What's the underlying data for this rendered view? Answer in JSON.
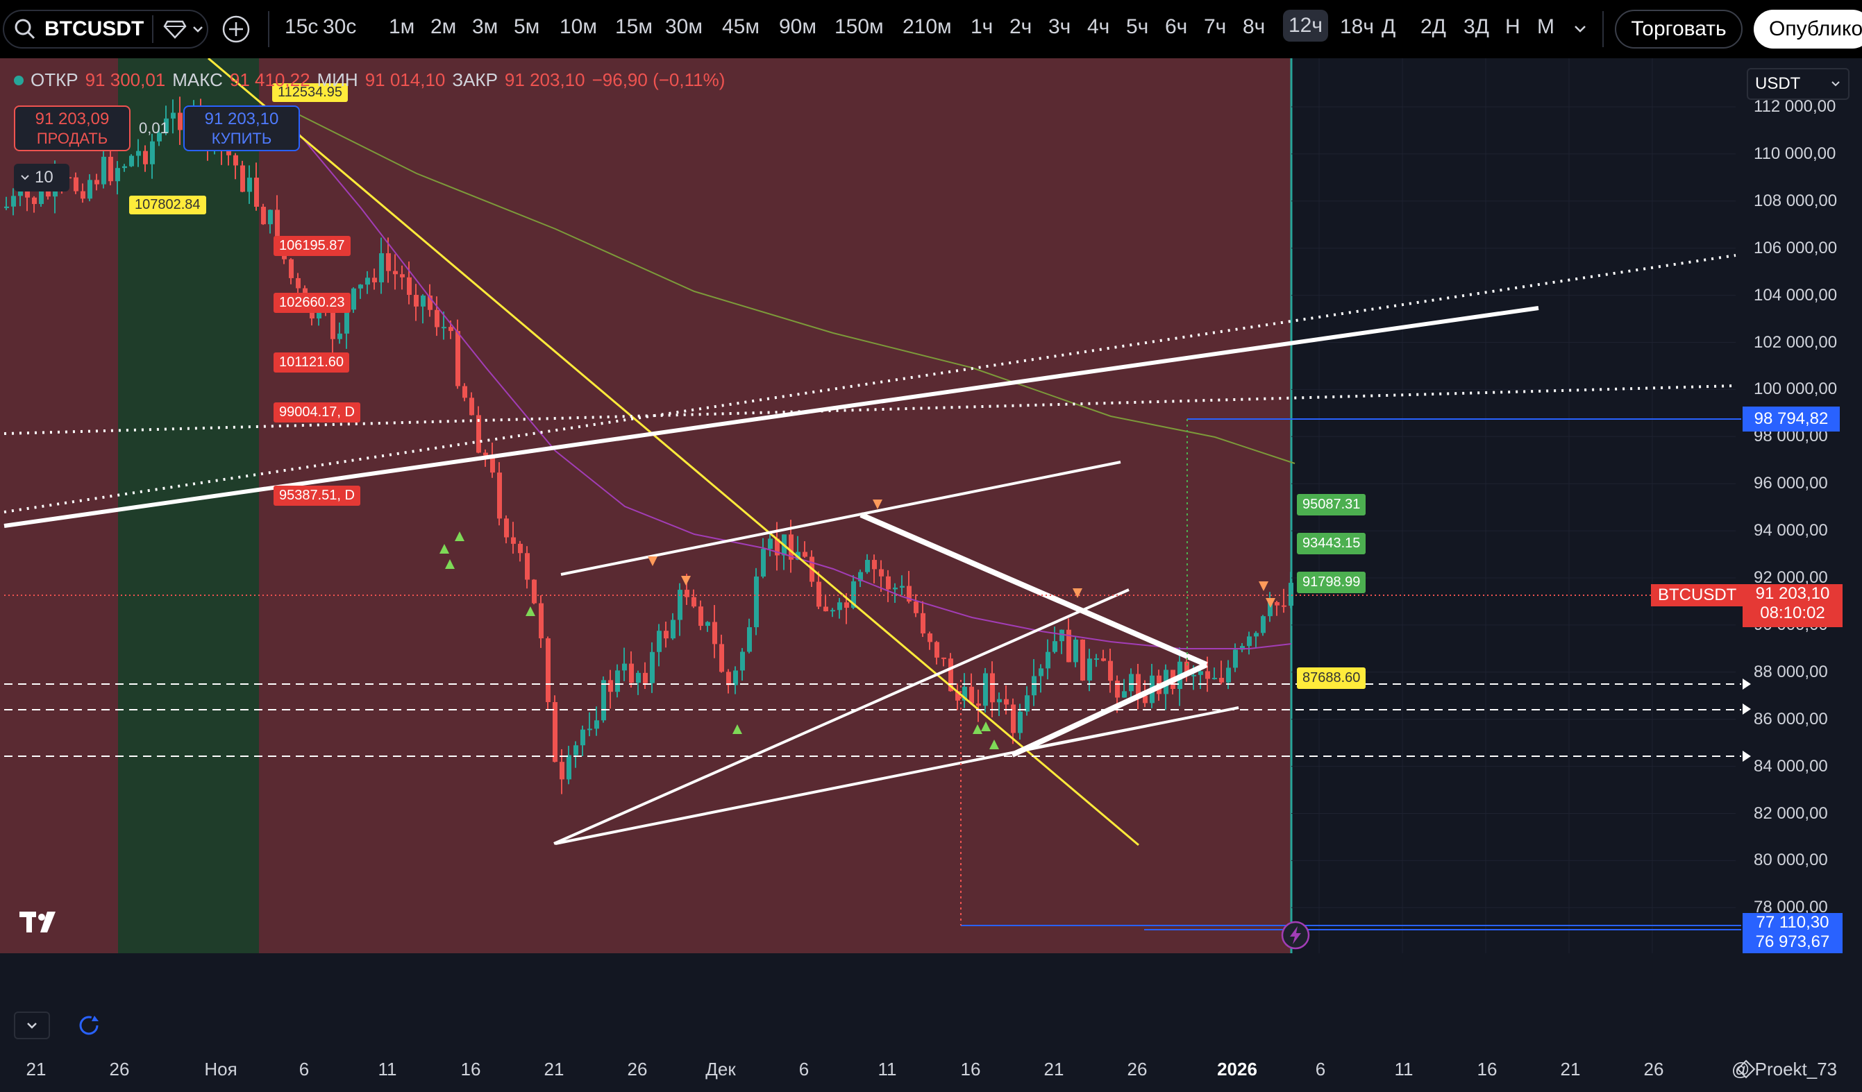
{
  "topbar": {
    "symbol": "BTCUSDT",
    "timeframes": [
      "15с",
      "30с",
      "1м",
      "2м",
      "3м",
      "5м",
      "10м",
      "15м",
      "30м",
      "45м",
      "90м",
      "150м",
      "210м",
      "1ч",
      "2ч",
      "3ч",
      "4ч",
      "5ч",
      "6ч",
      "7ч",
      "8ч",
      "12ч",
      "18ч",
      "Д",
      "2Д",
      "3Д",
      "Н",
      "М"
    ],
    "active_timeframe": "12ч",
    "trade_label": "Торговать",
    "publish_label": "Опублико"
  },
  "legend": {
    "open_label": "ОТКР",
    "open_value": "91 300,01",
    "high_label": "МАКС",
    "high_value": "91 410,22",
    "low_label": "МИН",
    "low_value": "91 014,10",
    "close_label": "ЗАКР",
    "close_value": "91 203,10",
    "change": "−96,90 (−0,11%)"
  },
  "trade": {
    "sell_price": "91 203,09",
    "sell_label": "ПРОДАТЬ",
    "spread": "0,01",
    "buy_price": "91 203,10",
    "buy_label": "КУПИТЬ",
    "qty": "10"
  },
  "currency": "USDT",
  "price_axis": [
    "112 000,00",
    "110 000,00",
    "108 000,00",
    "106 000,00",
    "104 000,00",
    "102 000,00",
    "100 000,00",
    "98 000,00",
    "96 000,00",
    "94 000,00",
    "92 000,00",
    "90 000,00",
    "88 000,00",
    "86 000,00",
    "84 000,00",
    "82 000,00",
    "80 000,00",
    "78 000,00"
  ],
  "price_tags": {
    "line_high": "98 794,82",
    "symbol_tag": "BTCUSDT",
    "last_price": "91 203,10",
    "countdown": "08:10:02",
    "low1": "77 110,30",
    "low2": "76 973,67"
  },
  "chart_labels": {
    "l1": "112534.95",
    "l2": "107802.84",
    "l3": "106195.87",
    "l4": "102660.23",
    "l5": "101121.60",
    "l6": "99004.17, D",
    "l7": "95387.51, D",
    "r1": "95087.31",
    "r2": "93443.15",
    "r3": "91798.99",
    "r4": "87688.60"
  },
  "date_axis": [
    "21",
    "26",
    "Ноя",
    "6",
    "11",
    "16",
    "21",
    "26",
    "Дек",
    "6",
    "11",
    "16",
    "21",
    "26",
    "2026",
    "6",
    "11",
    "16",
    "21",
    "26"
  ],
  "watermark": "@ Proekt_73",
  "colors": {
    "up": "#26a69a",
    "down": "#ef5350",
    "red_zone": "#5a2a32",
    "green_zone": "#1f3d2a",
    "line_blue": "#2962ff",
    "label_yellow": "#ffeb3b",
    "label_green": "#4caf50",
    "label_red": "#f44336"
  }
}
